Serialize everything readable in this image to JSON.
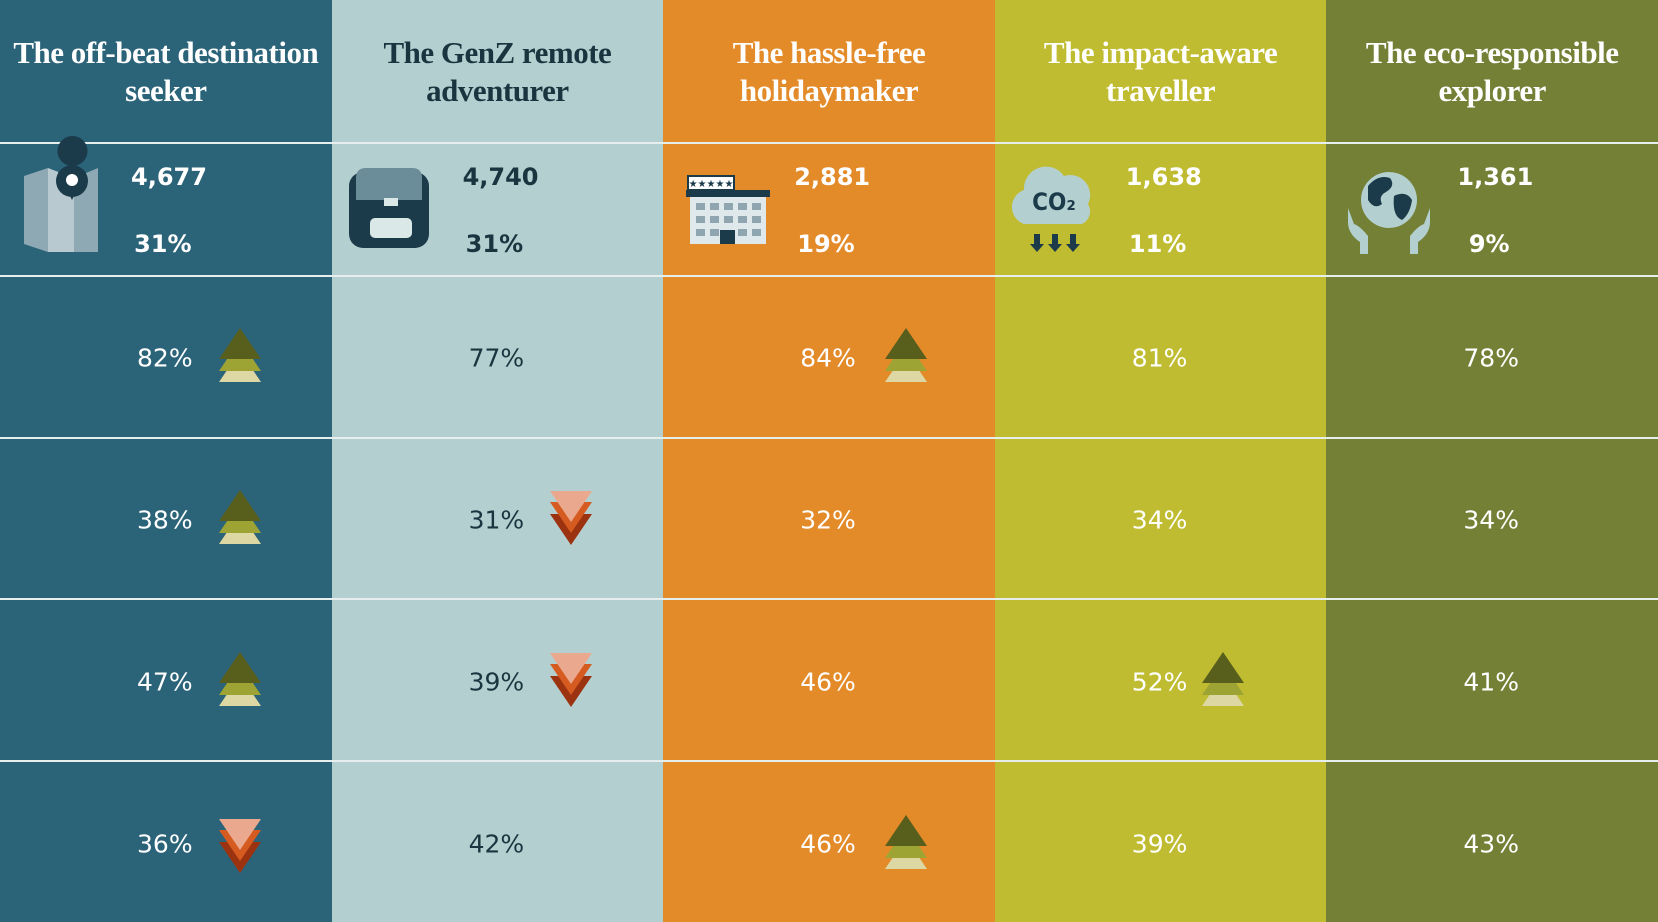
{
  "columns": [
    {
      "title": "The off-beat destination seeker",
      "count": "4,677",
      "share": "31%",
      "values": [
        "82%",
        "38%",
        "47%",
        "36%"
      ]
    },
    {
      "title": "The  GenZ remote adventurer",
      "count": "4,740",
      "share": "31%",
      "values": [
        "77%",
        "31%",
        "39%",
        "42%"
      ]
    },
    {
      "title": "The hassle-free holidaymaker",
      "count": "2,881",
      "share": "19%",
      "values": [
        "84%",
        "32%",
        "46%",
        "46%"
      ]
    },
    {
      "title": "The impact-aware traveller",
      "count": "1,638",
      "share": "11%",
      "values": [
        "81%",
        "34%",
        "52%",
        "39%"
      ]
    },
    {
      "title": "The eco-responsible explorer",
      "count": "1,361",
      "share": "9%",
      "values": [
        "78%",
        "34%",
        "41%",
        "43%"
      ]
    }
  ]
}
